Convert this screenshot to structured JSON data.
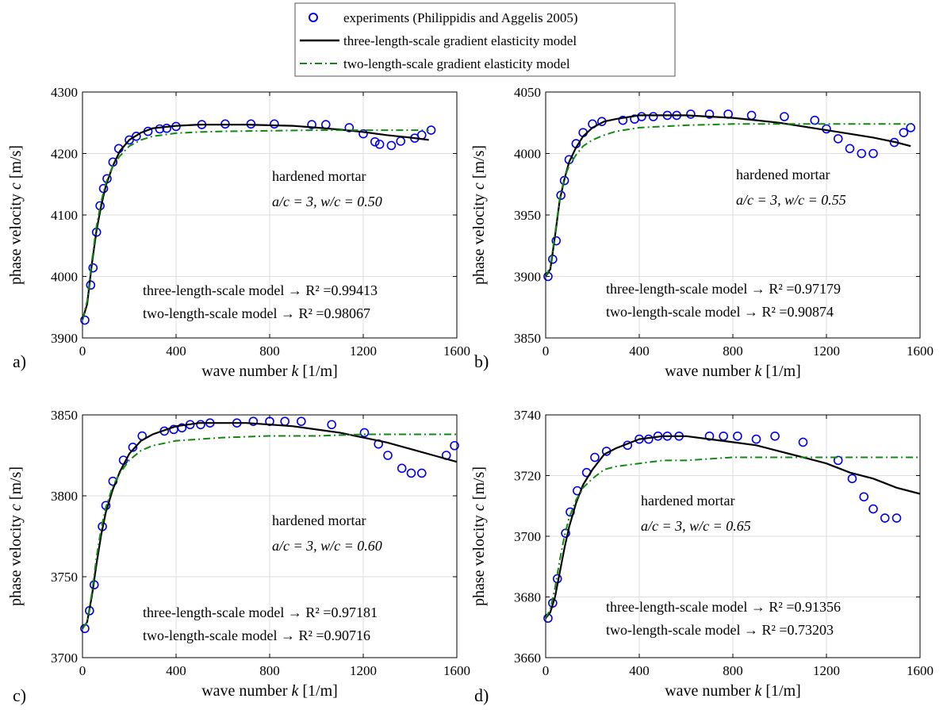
{
  "legend": {
    "items": [
      {
        "label": "experiments (Philippidis and Aggelis 2005)",
        "marker": "circle",
        "color": "#0000ee"
      },
      {
        "label": "three-length-scale gradient elasticity model",
        "marker": "solid",
        "color": "#000000"
      },
      {
        "label": "two-length-scale gradient elasticity model",
        "marker": "dashdot",
        "color": "#118811"
      }
    ]
  },
  "colors": {
    "experiments": "#0000ee",
    "three": "#000000",
    "two": "#118811",
    "grid": "#dddddd"
  },
  "chart_data": [
    {
      "type": "line",
      "panel_label": "a)",
      "xlabel": "wave number k [1/m]",
      "ylabel": "phase velocity c [m/s]",
      "xlim": [
        0,
        1600
      ],
      "ylim": [
        3900,
        4300
      ],
      "xticks": [
        0,
        400,
        800,
        1200,
        1600
      ],
      "yticks": [
        3900,
        4000,
        4100,
        4200,
        4300
      ],
      "grid": true,
      "annotation_lines": [
        "hardened mortar",
        "a/c = 3, w/c = 0.50"
      ],
      "r2_lines": [
        "three-length-scale model → R² =0.99413",
        "two-length-scale model → R² =0.98067"
      ],
      "series": [
        {
          "name": "experiments (Philippidis and Aggelis 2005)",
          "kind": "scatter",
          "x": [
            10,
            35,
            45,
            60,
            75,
            90,
            105,
            130,
            155,
            200,
            230,
            280,
            330,
            360,
            400,
            510,
            610,
            720,
            820,
            980,
            1040,
            1140,
            1200,
            1250,
            1270,
            1320,
            1360,
            1420,
            1450,
            1490
          ],
          "y": [
            3929,
            3986,
            4014,
            4072,
            4115,
            4143,
            4159,
            4186,
            4208,
            4222,
            4228,
            4236,
            4240,
            4241,
            4244,
            4247,
            4248,
            4248,
            4248,
            4247,
            4247,
            4242,
            4232,
            4219,
            4215,
            4213,
            4220,
            4225,
            4230,
            4238
          ]
        },
        {
          "name": "three-length-scale gradient elasticity model",
          "kind": "line",
          "x": [
            0,
            20,
            40,
            60,
            80,
            100,
            130,
            160,
            200,
            250,
            300,
            400,
            500,
            600,
            700,
            800,
            900,
            1000,
            1100,
            1200,
            1300,
            1400,
            1480
          ],
          "y": [
            3930,
            3955,
            4020,
            4075,
            4115,
            4148,
            4180,
            4204,
            4222,
            4234,
            4241,
            4245,
            4247,
            4247,
            4247,
            4246,
            4245,
            4242,
            4239,
            4235,
            4230,
            4226,
            4222
          ]
        },
        {
          "name": "two-length-scale gradient elasticity model",
          "kind": "line",
          "x": [
            0,
            20,
            40,
            60,
            80,
            100,
            130,
            160,
            200,
            250,
            300,
            400,
            500,
            600,
            800,
            1000,
            1200,
            1400,
            1480
          ],
          "y": [
            3930,
            3960,
            4025,
            4082,
            4122,
            4152,
            4180,
            4196,
            4212,
            4222,
            4228,
            4233,
            4235,
            4236,
            4237,
            4238,
            4238,
            4238,
            4238
          ]
        }
      ]
    },
    {
      "type": "line",
      "panel_label": "b)",
      "xlabel": "wave number k [1/m]",
      "ylabel": "phase velocity c [m/s]",
      "xlim": [
        0,
        1600
      ],
      "ylim": [
        3850,
        4050
      ],
      "xticks": [
        0,
        400,
        800,
        1200,
        1600
      ],
      "yticks": [
        3850,
        3900,
        3950,
        4000,
        4050
      ],
      "grid": true,
      "annotation_lines": [
        "hardened mortar",
        "a/c = 3, w/c = 0.55"
      ],
      "r2_lines": [
        "three-length-scale model → R² =0.97179",
        "two-length-scale model → R² =0.90874"
      ],
      "series": [
        {
          "name": "experiments (Philippidis and Aggelis 2005)",
          "kind": "scatter",
          "x": [
            10,
            30,
            45,
            65,
            80,
            100,
            130,
            160,
            200,
            240,
            330,
            380,
            410,
            460,
            520,
            560,
            620,
            700,
            780,
            880,
            1020,
            1150,
            1200,
            1250,
            1300,
            1350,
            1400,
            1490,
            1530,
            1560
          ],
          "y": [
            3900,
            3914,
            3929,
            3966,
            3978,
            3995,
            4008,
            4017,
            4024,
            4026,
            4027,
            4028,
            4030,
            4030,
            4031,
            4031,
            4032,
            4032,
            4032,
            4031,
            4030,
            4027,
            4020,
            4012,
            4004,
            4000,
            4000,
            4009,
            4017,
            4021
          ]
        },
        {
          "name": "three-length-scale gradient elasticity model",
          "kind": "line",
          "x": [
            0,
            20,
            40,
            60,
            80,
            100,
            130,
            160,
            200,
            250,
            300,
            400,
            500,
            600,
            700,
            800,
            900,
            1000,
            1100,
            1200,
            1300,
            1400,
            1500,
            1560
          ],
          "y": [
            3900,
            3906,
            3933,
            3962,
            3979,
            3993,
            4005,
            4014,
            4021,
            4026,
            4028,
            4031,
            4031,
            4031,
            4030,
            4029,
            4027,
            4025,
            4022,
            4019,
            4016,
            4013,
            4009,
            4006
          ]
        },
        {
          "name": "two-length-scale gradient elasticity model",
          "kind": "line",
          "x": [
            0,
            20,
            40,
            60,
            80,
            100,
            130,
            160,
            200,
            250,
            300,
            400,
            500,
            600,
            800,
            1000,
            1200,
            1400,
            1560
          ],
          "y": [
            3900,
            3908,
            3935,
            3963,
            3980,
            3990,
            3999,
            4006,
            4011,
            4015,
            4018,
            4021,
            4022,
            4023,
            4024,
            4024,
            4024,
            4024,
            4024
          ]
        }
      ]
    },
    {
      "type": "line",
      "panel_label": "c)",
      "xlabel": "wave number k [1/m]",
      "ylabel": "phase velocity c [m/s]",
      "xlim": [
        0,
        1600
      ],
      "ylim": [
        3700,
        3850
      ],
      "xticks": [
        0,
        400,
        800,
        1200,
        1600
      ],
      "yticks": [
        3700,
        3750,
        3800,
        3850
      ],
      "grid": true,
      "annotation_lines": [
        "hardened mortar",
        "a/c = 3, w/c = 0.60"
      ],
      "r2_lines": [
        "three-length-scale model → R² =0.97181",
        "two-length-scale model → R² =0.90716"
      ],
      "series": [
        {
          "name": "experiments (Philippidis and Aggelis 2005)",
          "kind": "scatter",
          "x": [
            10,
            30,
            50,
            85,
            100,
            130,
            175,
            215,
            255,
            350,
            390,
            425,
            460,
            505,
            545,
            660,
            730,
            800,
            865,
            935,
            1065,
            1205,
            1265,
            1305,
            1365,
            1405,
            1450,
            1555,
            1590
          ],
          "y": [
            3718,
            3729,
            3745,
            3781,
            3794,
            3809,
            3822,
            3830,
            3837,
            3840,
            3841,
            3842,
            3844,
            3844,
            3845,
            3845,
            3846,
            3846,
            3846,
            3846,
            3844,
            3839,
            3832,
            3825,
            3817,
            3814,
            3814,
            3825,
            3831
          ]
        },
        {
          "name": "three-length-scale gradient elasticity model",
          "kind": "line",
          "x": [
            0,
            20,
            40,
            60,
            80,
            100,
            130,
            160,
            200,
            250,
            300,
            400,
            500,
            600,
            700,
            800,
            900,
            1000,
            1100,
            1200,
            1300,
            1400,
            1500,
            1600
          ],
          "y": [
            3718,
            3722,
            3738,
            3758,
            3776,
            3790,
            3804,
            3815,
            3826,
            3834,
            3838,
            3843,
            3845,
            3845,
            3845,
            3844,
            3843,
            3841,
            3839,
            3836,
            3833,
            3829,
            3825,
            3821
          ]
        },
        {
          "name": "two-length-scale gradient elasticity model",
          "kind": "line",
          "x": [
            0,
            20,
            40,
            60,
            80,
            100,
            130,
            160,
            200,
            250,
            300,
            400,
            500,
            600,
            800,
            1000,
            1200,
            1400,
            1600
          ],
          "y": [
            3718,
            3722,
            3740,
            3762,
            3780,
            3793,
            3806,
            3814,
            3822,
            3828,
            3831,
            3834,
            3835,
            3836,
            3837,
            3837,
            3838,
            3838,
            3838
          ]
        }
      ]
    },
    {
      "type": "line",
      "panel_label": "d)",
      "xlabel": "wave number k [1/m]",
      "ylabel": "phase velocity c [m/s]",
      "xlim": [
        0,
        1600
      ],
      "ylim": [
        3660,
        3740
      ],
      "xticks": [
        0,
        400,
        800,
        1200,
        1600
      ],
      "yticks": [
        3660,
        3680,
        3700,
        3720,
        3740
      ],
      "grid": true,
      "annotation_lines": [
        "hardened mortar",
        "a/c = 3, w/c = 0.65"
      ],
      "r2_lines": [
        "three-length-scale model → R² =0.91356",
        "two-length-scale model → R² =0.73203"
      ],
      "series": [
        {
          "name": "experiments (Philippidis and Aggelis 2005)",
          "kind": "scatter",
          "x": [
            10,
            30,
            50,
            85,
            105,
            135,
            175,
            210,
            260,
            350,
            400,
            440,
            480,
            520,
            570,
            700,
            760,
            820,
            900,
            980,
            1100,
            1250,
            1310,
            1360,
            1400,
            1450,
            1500
          ],
          "y": [
            3673,
            3678,
            3686,
            3701,
            3708,
            3715,
            3721,
            3726,
            3728,
            3730,
            3732,
            3732,
            3733,
            3733,
            3733,
            3733,
            3733,
            3733,
            3732,
            3733,
            3731,
            3725,
            3719,
            3713,
            3709,
            3706,
            3706
          ]
        },
        {
          "name": "three-length-scale gradient elasticity model",
          "kind": "line",
          "x": [
            0,
            20,
            40,
            60,
            80,
            100,
            130,
            160,
            200,
            250,
            300,
            400,
            500,
            600,
            700,
            800,
            900,
            1000,
            1100,
            1200,
            1300,
            1400,
            1500,
            1600
          ],
          "y": [
            3673,
            3675,
            3680,
            3688,
            3696,
            3703,
            3711,
            3717,
            3722,
            3727,
            3729,
            3732,
            3733,
            3733,
            3732,
            3731,
            3730,
            3728,
            3726,
            3724,
            3721,
            3719,
            3716,
            3714
          ]
        },
        {
          "name": "two-length-scale gradient elasticity model",
          "kind": "line",
          "x": [
            0,
            20,
            40,
            60,
            80,
            100,
            130,
            160,
            200,
            250,
            300,
            400,
            500,
            600,
            800,
            1000,
            1200,
            1400,
            1600
          ],
          "y": [
            3673,
            3676,
            3683,
            3692,
            3700,
            3706,
            3712,
            3716,
            3719,
            3722,
            3723,
            3724,
            3725,
            3725,
            3726,
            3726,
            3726,
            3726,
            3726
          ]
        }
      ]
    }
  ]
}
